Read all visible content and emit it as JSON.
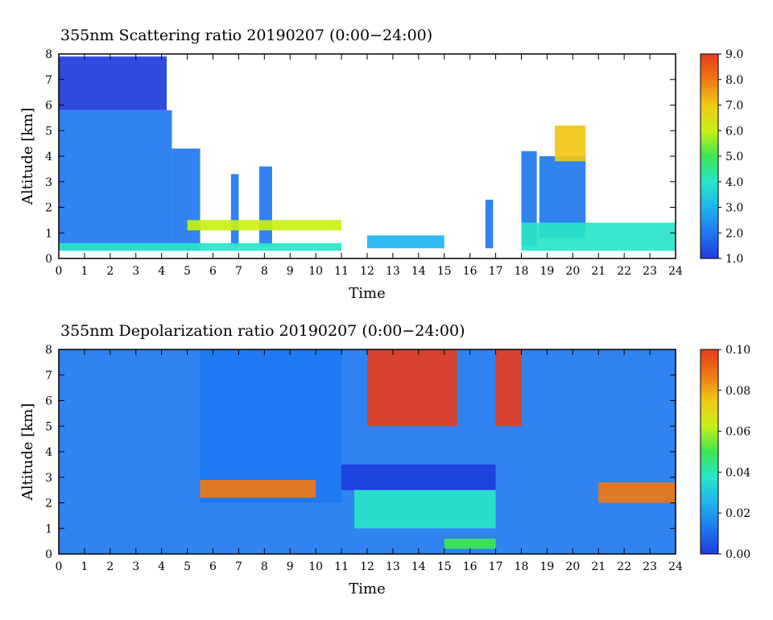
{
  "chart_data": [
    {
      "type": "heatmap",
      "title": "355nm Scattering ratio  20190207 (0:00−24:00)",
      "xlabel": "Time",
      "ylabel": "Altitude [km]",
      "xlim": [
        0,
        24
      ],
      "ylim": [
        0,
        8
      ],
      "x_ticks": [
        "0",
        "1",
        "2",
        "3",
        "4",
        "5",
        "6",
        "7",
        "8",
        "9",
        "10",
        "11",
        "12",
        "13",
        "14",
        "15",
        "16",
        "17",
        "18",
        "19",
        "20",
        "21",
        "22",
        "23",
        "24"
      ],
      "y_ticks": [
        "0",
        "1",
        "2",
        "3",
        "4",
        "5",
        "6",
        "7",
        "8"
      ],
      "colorbar": {
        "range": [
          1.0,
          9.0
        ],
        "ticks": [
          "1.0",
          "2.0",
          "3.0",
          "4.0",
          "5.0",
          "6.0",
          "7.0",
          "8.0",
          "9.0"
        ],
        "colors": [
          "#1e3cdc",
          "#1e78f0",
          "#1eb4f0",
          "#28e6c8",
          "#3ce650",
          "#c8f014",
          "#f0c814",
          "#f07814",
          "#e63c1e"
        ]
      },
      "features": [
        {
          "t0": 0.0,
          "t1": 4.4,
          "z0": 0.3,
          "z1": 5.8,
          "level": 2.0
        },
        {
          "t0": 0.0,
          "t1": 4.2,
          "z0": 5.8,
          "z1": 7.9,
          "level": 1.8
        },
        {
          "t0": 4.4,
          "t1": 5.5,
          "z0": 0.3,
          "z1": 4.3,
          "level": 2.0
        },
        {
          "t0": 6.7,
          "t1": 7.0,
          "z0": 0.5,
          "z1": 3.3,
          "level": 2.0
        },
        {
          "t0": 7.8,
          "t1": 8.3,
          "z0": 0.5,
          "z1": 3.6,
          "level": 2.0
        },
        {
          "t0": 16.6,
          "t1": 16.9,
          "z0": 0.4,
          "z1": 2.3,
          "level": 2.0
        },
        {
          "t0": 18.0,
          "t1": 18.6,
          "z0": 0.5,
          "z1": 4.2,
          "level": 2.0
        },
        {
          "t0": 18.7,
          "t1": 20.5,
          "z0": 0.8,
          "z1": 4.0,
          "level": 2.0
        },
        {
          "t0": 19.3,
          "t1": 20.5,
          "z0": 3.8,
          "z1": 5.2,
          "level": 6.5
        },
        {
          "t0": 0.0,
          "t1": 11.0,
          "z0": 0.3,
          "z1": 0.6,
          "level": 4.0
        },
        {
          "t0": 5.0,
          "t1": 11.0,
          "z0": 1.1,
          "z1": 1.5,
          "level": 5.5
        },
        {
          "t0": 12.0,
          "t1": 15.0,
          "z0": 0.4,
          "z1": 0.9,
          "level": 3.5
        },
        {
          "t0": 18.0,
          "t1": 24.0,
          "z0": 0.3,
          "z1": 1.4,
          "level": 4.5
        }
      ]
    },
    {
      "type": "heatmap",
      "title": "355nm Depolarization ratio  20190207 (0:00−24:00)",
      "xlabel": "Time",
      "ylabel": "Altitude [km]",
      "xlim": [
        0,
        24
      ],
      "ylim": [
        0,
        8
      ],
      "x_ticks": [
        "0",
        "1",
        "2",
        "3",
        "4",
        "5",
        "6",
        "7",
        "8",
        "9",
        "10",
        "11",
        "12",
        "13",
        "14",
        "15",
        "16",
        "17",
        "18",
        "19",
        "20",
        "21",
        "22",
        "23",
        "24"
      ],
      "y_ticks": [
        "0",
        "1",
        "2",
        "3",
        "4",
        "5",
        "6",
        "7",
        "8"
      ],
      "colorbar": {
        "range": [
          0.0,
          0.1
        ],
        "ticks": [
          "0.00",
          "0.02",
          "0.04",
          "0.06",
          "0.08",
          "0.10"
        ],
        "colors": [
          "#1e3cdc",
          "#1e78f0",
          "#1eb4f0",
          "#28e6c8",
          "#3ce650",
          "#c8f014",
          "#f0c814",
          "#f07814",
          "#e63c1e"
        ]
      },
      "features": [
        {
          "t0": 0.0,
          "t1": 24.0,
          "z0": 0.0,
          "z1": 8.0,
          "level": 0.018
        },
        {
          "t0": 5.5,
          "t1": 11.0,
          "z0": 2.0,
          "z1": 8.0,
          "level": 0.012
        },
        {
          "t0": 11.0,
          "t1": 17.0,
          "z0": 2.5,
          "z1": 3.5,
          "level": 0.008
        },
        {
          "t0": 12.0,
          "t1": 15.5,
          "z0": 5.0,
          "z1": 8.0,
          "level": 0.09
        },
        {
          "t0": 17.0,
          "t1": 18.0,
          "z0": 5.0,
          "z1": 8.0,
          "level": 0.095
        },
        {
          "t0": 11.5,
          "t1": 17.0,
          "z0": 1.0,
          "z1": 2.5,
          "level": 0.042
        },
        {
          "t0": 21.0,
          "t1": 24.0,
          "z0": 2.0,
          "z1": 2.8,
          "level": 0.085
        },
        {
          "t0": 5.5,
          "t1": 10.0,
          "z0": 2.2,
          "z1": 2.9,
          "level": 0.085
        },
        {
          "t0": 15.0,
          "t1": 17.0,
          "z0": 0.2,
          "z1": 0.6,
          "level": 0.05
        }
      ]
    }
  ]
}
